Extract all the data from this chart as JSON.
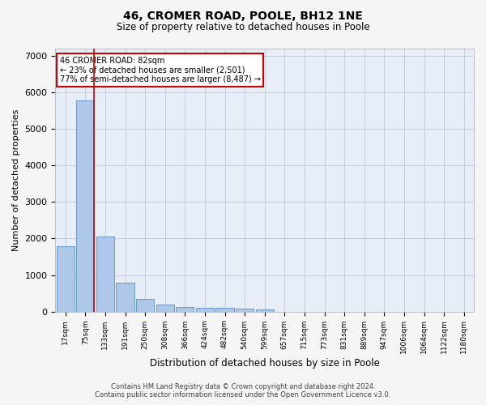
{
  "title": "46, CROMER ROAD, POOLE, BH12 1NE",
  "subtitle": "Size of property relative to detached houses in Poole",
  "xlabel": "Distribution of detached houses by size in Poole",
  "ylabel": "Number of detached properties",
  "bar_labels": [
    "17sqm",
    "75sqm",
    "133sqm",
    "191sqm",
    "250sqm",
    "308sqm",
    "366sqm",
    "424sqm",
    "482sqm",
    "540sqm",
    "599sqm",
    "657sqm",
    "715sqm",
    "773sqm",
    "831sqm",
    "889sqm",
    "947sqm",
    "1006sqm",
    "1064sqm",
    "1122sqm",
    "1180sqm"
  ],
  "bar_values": [
    1780,
    5780,
    2060,
    800,
    340,
    190,
    115,
    100,
    95,
    75,
    65,
    0,
    0,
    0,
    0,
    0,
    0,
    0,
    0,
    0,
    0
  ],
  "bar_color": "#aec6e8",
  "bar_edge_color": "#5a8fc2",
  "vline_color": "#cc0000",
  "annotation_text": "46 CROMER ROAD: 82sqm\n← 23% of detached houses are smaller (2,501)\n77% of semi-detached houses are larger (8,487) →",
  "annotation_box_color": "#ffffff",
  "annotation_box_edgecolor": "#cc0000",
  "ylim": [
    0,
    7200
  ],
  "yticks": [
    0,
    1000,
    2000,
    3000,
    4000,
    5000,
    6000,
    7000
  ],
  "grid_color": "#c0c8d8",
  "bg_color": "#e8eef8",
  "fig_bg_color": "#f5f5f5",
  "footer_line1": "Contains HM Land Registry data © Crown copyright and database right 2024.",
  "footer_line2": "Contains public sector information licensed under the Open Government Licence v3.0."
}
